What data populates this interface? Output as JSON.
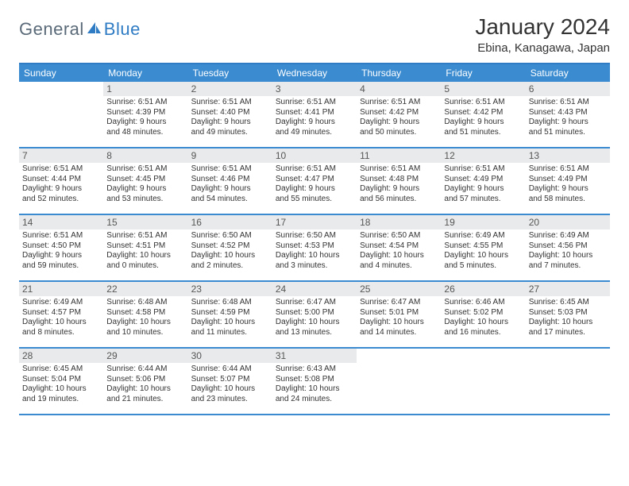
{
  "brand": {
    "word1": "General",
    "word2": "Blue"
  },
  "title": "January 2024",
  "location": "Ebina, Kanagawa, Japan",
  "colors": {
    "header_bar": "#3a8bd0",
    "rule": "#2f7cc4",
    "daynum_bg": "#e9eaeb",
    "text": "#333333",
    "logo_gray": "#5a6a78",
    "logo_blue": "#2f7cc4",
    "background": "#ffffff"
  },
  "typography": {
    "month_title_fontsize": 28,
    "location_fontsize": 15,
    "dow_fontsize": 12,
    "daynum_fontsize": 12,
    "info_fontsize": 10
  },
  "dow": [
    "Sunday",
    "Monday",
    "Tuesday",
    "Wednesday",
    "Thursday",
    "Friday",
    "Saturday"
  ],
  "weeks": [
    [
      null,
      {
        "n": "1",
        "sunrise": "6:51 AM",
        "sunset": "4:39 PM",
        "day_h": 9,
        "day_m": 48
      },
      {
        "n": "2",
        "sunrise": "6:51 AM",
        "sunset": "4:40 PM",
        "day_h": 9,
        "day_m": 49
      },
      {
        "n": "3",
        "sunrise": "6:51 AM",
        "sunset": "4:41 PM",
        "day_h": 9,
        "day_m": 49
      },
      {
        "n": "4",
        "sunrise": "6:51 AM",
        "sunset": "4:42 PM",
        "day_h": 9,
        "day_m": 50
      },
      {
        "n": "5",
        "sunrise": "6:51 AM",
        "sunset": "4:42 PM",
        "day_h": 9,
        "day_m": 51
      },
      {
        "n": "6",
        "sunrise": "6:51 AM",
        "sunset": "4:43 PM",
        "day_h": 9,
        "day_m": 51
      }
    ],
    [
      {
        "n": "7",
        "sunrise": "6:51 AM",
        "sunset": "4:44 PM",
        "day_h": 9,
        "day_m": 52
      },
      {
        "n": "8",
        "sunrise": "6:51 AM",
        "sunset": "4:45 PM",
        "day_h": 9,
        "day_m": 53
      },
      {
        "n": "9",
        "sunrise": "6:51 AM",
        "sunset": "4:46 PM",
        "day_h": 9,
        "day_m": 54
      },
      {
        "n": "10",
        "sunrise": "6:51 AM",
        "sunset": "4:47 PM",
        "day_h": 9,
        "day_m": 55
      },
      {
        "n": "11",
        "sunrise": "6:51 AM",
        "sunset": "4:48 PM",
        "day_h": 9,
        "day_m": 56
      },
      {
        "n": "12",
        "sunrise": "6:51 AM",
        "sunset": "4:49 PM",
        "day_h": 9,
        "day_m": 57
      },
      {
        "n": "13",
        "sunrise": "6:51 AM",
        "sunset": "4:49 PM",
        "day_h": 9,
        "day_m": 58
      }
    ],
    [
      {
        "n": "14",
        "sunrise": "6:51 AM",
        "sunset": "4:50 PM",
        "day_h": 9,
        "day_m": 59
      },
      {
        "n": "15",
        "sunrise": "6:51 AM",
        "sunset": "4:51 PM",
        "day_h": 10,
        "day_m": 0
      },
      {
        "n": "16",
        "sunrise": "6:50 AM",
        "sunset": "4:52 PM",
        "day_h": 10,
        "day_m": 2
      },
      {
        "n": "17",
        "sunrise": "6:50 AM",
        "sunset": "4:53 PM",
        "day_h": 10,
        "day_m": 3
      },
      {
        "n": "18",
        "sunrise": "6:50 AM",
        "sunset": "4:54 PM",
        "day_h": 10,
        "day_m": 4
      },
      {
        "n": "19",
        "sunrise": "6:49 AM",
        "sunset": "4:55 PM",
        "day_h": 10,
        "day_m": 5
      },
      {
        "n": "20",
        "sunrise": "6:49 AM",
        "sunset": "4:56 PM",
        "day_h": 10,
        "day_m": 7
      }
    ],
    [
      {
        "n": "21",
        "sunrise": "6:49 AM",
        "sunset": "4:57 PM",
        "day_h": 10,
        "day_m": 8
      },
      {
        "n": "22",
        "sunrise": "6:48 AM",
        "sunset": "4:58 PM",
        "day_h": 10,
        "day_m": 10
      },
      {
        "n": "23",
        "sunrise": "6:48 AM",
        "sunset": "4:59 PM",
        "day_h": 10,
        "day_m": 11
      },
      {
        "n": "24",
        "sunrise": "6:47 AM",
        "sunset": "5:00 PM",
        "day_h": 10,
        "day_m": 13
      },
      {
        "n": "25",
        "sunrise": "6:47 AM",
        "sunset": "5:01 PM",
        "day_h": 10,
        "day_m": 14
      },
      {
        "n": "26",
        "sunrise": "6:46 AM",
        "sunset": "5:02 PM",
        "day_h": 10,
        "day_m": 16
      },
      {
        "n": "27",
        "sunrise": "6:45 AM",
        "sunset": "5:03 PM",
        "day_h": 10,
        "day_m": 17
      }
    ],
    [
      {
        "n": "28",
        "sunrise": "6:45 AM",
        "sunset": "5:04 PM",
        "day_h": 10,
        "day_m": 19
      },
      {
        "n": "29",
        "sunrise": "6:44 AM",
        "sunset": "5:06 PM",
        "day_h": 10,
        "day_m": 21
      },
      {
        "n": "30",
        "sunrise": "6:44 AM",
        "sunset": "5:07 PM",
        "day_h": 10,
        "day_m": 23
      },
      {
        "n": "31",
        "sunrise": "6:43 AM",
        "sunset": "5:08 PM",
        "day_h": 10,
        "day_m": 24
      },
      null,
      null,
      null
    ]
  ],
  "labels": {
    "sunrise": "Sunrise:",
    "sunset": "Sunset:",
    "daylight": "Daylight:",
    "hours": "hours",
    "and": "and",
    "minutes": "minutes."
  }
}
